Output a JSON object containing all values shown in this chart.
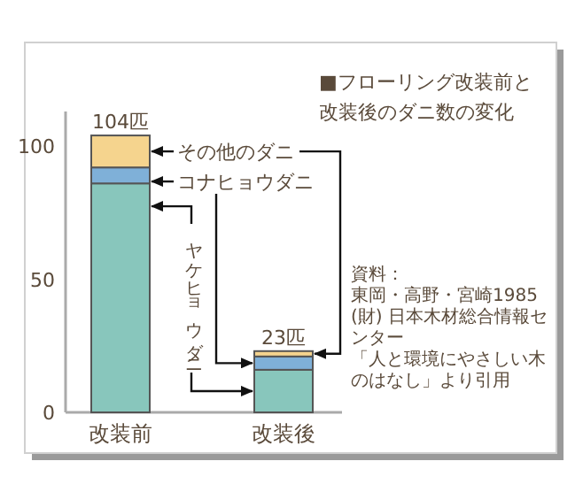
{
  "chart_data": {
    "type": "bar",
    "stacked": true,
    "title": "■フローリング改装前と改装後のダニ数の変化",
    "categories": [
      "改装前",
      "改装後"
    ],
    "series": [
      {
        "name": "ヤケヒョウダニ",
        "color": "#88c6bc",
        "values": [
          86,
          16
        ]
      },
      {
        "name": "コナヒョウダニ",
        "color": "#7fb0d8",
        "values": [
          6,
          5
        ]
      },
      {
        "name": "その他のダニ",
        "color": "#f5d48e",
        "values": [
          12,
          2
        ]
      }
    ],
    "totals": [
      "104匹",
      "23匹"
    ],
    "ylim": [
      0,
      113
    ],
    "yticks": [
      0,
      50,
      100
    ],
    "legend": false,
    "grid": false,
    "annotations": [
      "資料：",
      "東岡・高野・宮崎1985",
      "(財) 日本木材総合情報センター",
      "「人と環境にやさしい木のはなし」より引用"
    ]
  }
}
